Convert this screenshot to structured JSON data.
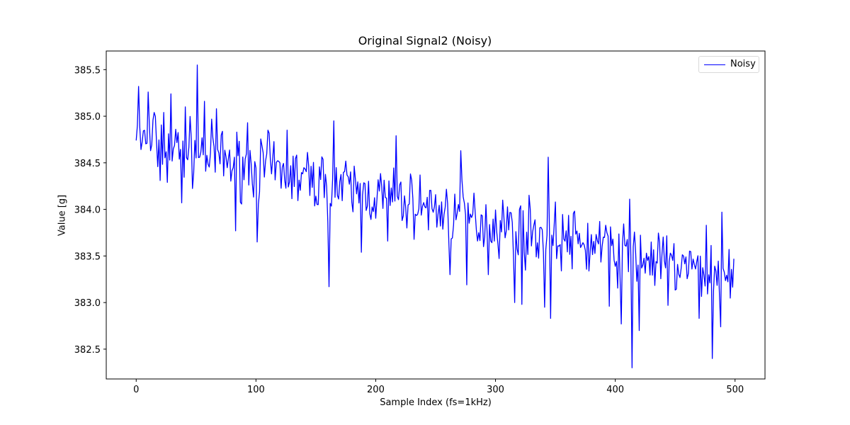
{
  "figure": {
    "title": "Original Signal2 (Noisy)",
    "xlabel": "Sample Index (fs=1kHz)",
    "ylabel": "Value [g]",
    "legend": {
      "label": "Noisy",
      "color": "#0000ff"
    }
  },
  "chart_data": {
    "type": "line",
    "title": "Original Signal2 (Noisy)",
    "xlabel": "Sample Index (fs=1kHz)",
    "ylabel": "Value [g]",
    "xlim": [
      -25,
      525
    ],
    "ylim": [
      382.18,
      385.7
    ],
    "xticks": [
      0,
      100,
      200,
      300,
      400,
      500
    ],
    "yticks": [
      382.5,
      383.0,
      383.5,
      384.0,
      384.5,
      385.0,
      385.5
    ],
    "xtick_labels": [
      "0",
      "100",
      "200",
      "300",
      "400",
      "500"
    ],
    "ytick_labels": [
      "382.5",
      "383.0",
      "383.5",
      "384.0",
      "384.5",
      "385.0",
      "385.5"
    ],
    "grid": false,
    "legend_position": "upper right",
    "series": [
      {
        "name": "Noisy",
        "color": "#0000ff",
        "n_points": 500,
        "x_range": [
          0,
          499
        ],
        "trend_start": 384.75,
        "trend_end": 383.25,
        "noise_amplitude": 0.45,
        "seed": 7,
        "anchors": [
          {
            "x": 0,
            "y": 384.74
          },
          {
            "x": 1,
            "y": 384.9
          },
          {
            "x": 2,
            "y": 385.32
          },
          {
            "x": 3,
            "y": 384.88
          },
          {
            "x": 10,
            "y": 385.26
          },
          {
            "x": 12,
            "y": 384.63
          },
          {
            "x": 15,
            "y": 385.04
          },
          {
            "x": 20,
            "y": 384.31
          },
          {
            "x": 23,
            "y": 385.04
          },
          {
            "x": 26,
            "y": 384.29
          },
          {
            "x": 29,
            "y": 385.24
          },
          {
            "x": 38,
            "y": 384.07
          },
          {
            "x": 41,
            "y": 385.1
          },
          {
            "x": 51,
            "y": 385.55
          },
          {
            "x": 57,
            "y": 385.16
          },
          {
            "x": 67,
            "y": 385.08
          },
          {
            "x": 83,
            "y": 383.77
          },
          {
            "x": 93,
            "y": 384.93
          },
          {
            "x": 101,
            "y": 383.65
          },
          {
            "x": 110,
            "y": 384.85
          },
          {
            "x": 126,
            "y": 384.85
          },
          {
            "x": 161,
            "y": 383.17
          },
          {
            "x": 165,
            "y": 384.95
          },
          {
            "x": 188,
            "y": 383.54
          },
          {
            "x": 210,
            "y": 383.66
          },
          {
            "x": 217,
            "y": 384.79
          },
          {
            "x": 243,
            "y": 384.13
          },
          {
            "x": 262,
            "y": 383.3
          },
          {
            "x": 271,
            "y": 384.63
          },
          {
            "x": 276,
            "y": 383.19
          },
          {
            "x": 294,
            "y": 383.3
          },
          {
            "x": 316,
            "y": 383.0
          },
          {
            "x": 322,
            "y": 382.98
          },
          {
            "x": 341,
            "y": 382.95
          },
          {
            "x": 344,
            "y": 384.56
          },
          {
            "x": 346,
            "y": 382.83
          },
          {
            "x": 387,
            "y": 383.87
          },
          {
            "x": 392,
            "y": 383.83
          },
          {
            "x": 395,
            "y": 382.96
          },
          {
            "x": 405,
            "y": 382.77
          },
          {
            "x": 412,
            "y": 384.11
          },
          {
            "x": 414,
            "y": 382.3
          },
          {
            "x": 420,
            "y": 382.7
          },
          {
            "x": 444,
            "y": 382.97
          },
          {
            "x": 470,
            "y": 382.83
          },
          {
            "x": 476,
            "y": 383.83
          },
          {
            "x": 481,
            "y": 382.4
          },
          {
            "x": 488,
            "y": 382.74
          },
          {
            "x": 489,
            "y": 383.97
          },
          {
            "x": 495,
            "y": 383.57
          },
          {
            "x": 499,
            "y": 383.47
          }
        ]
      }
    ]
  }
}
